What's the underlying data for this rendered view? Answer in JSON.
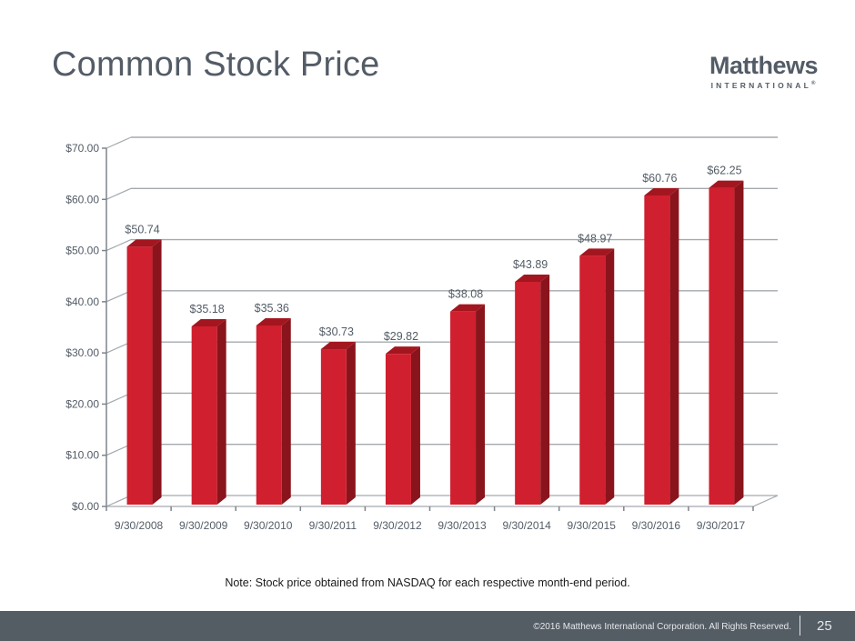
{
  "slide": {
    "title": "Common Stock Price",
    "logo": {
      "name": "Matthews",
      "tagline": "INTERNATIONAL",
      "mark": "®"
    },
    "note": "Note: Stock price obtained from NASDAQ for each respective month-end period.",
    "footer": {
      "copyright": "©2016 Matthews International Corporation. All Rights Reserved.",
      "page_number": "25"
    }
  },
  "colors": {
    "bar_front": "#d01f2e",
    "bar_side": "#8a141c",
    "bar_top": "#a3161f",
    "grid": "#a4a9ae",
    "axis": "#7d848a",
    "text": "#535c66",
    "footer_bg": "#545c64"
  },
  "chart_data": {
    "type": "bar",
    "title": "Common Stock Price",
    "xlabel": "",
    "ylabel": "",
    "categories": [
      "9/30/2008",
      "9/30/2009",
      "9/30/2010",
      "9/30/2011",
      "9/30/2012",
      "9/30/2013",
      "9/30/2014",
      "9/30/2015",
      "9/30/2016",
      "9/30/2017"
    ],
    "values": [
      50.74,
      35.18,
      35.36,
      30.73,
      29.82,
      38.08,
      43.89,
      48.97,
      60.76,
      62.25
    ],
    "data_labels": [
      "$50.74",
      "$35.18",
      "$35.36",
      "$30.73",
      "$29.82",
      "$38.08",
      "$43.89",
      "$48.97",
      "$60.76",
      "$62.25"
    ],
    "yticks": [
      0,
      10,
      20,
      30,
      40,
      50,
      60,
      70
    ],
    "ytick_labels": [
      "$0.00",
      "$10.00",
      "$20.00",
      "$30.00",
      "$40.00",
      "$50.00",
      "$60.00",
      "$70.00"
    ],
    "ylim": [
      0,
      70
    ],
    "grid": true,
    "legend": "none",
    "style": "3d-column"
  }
}
